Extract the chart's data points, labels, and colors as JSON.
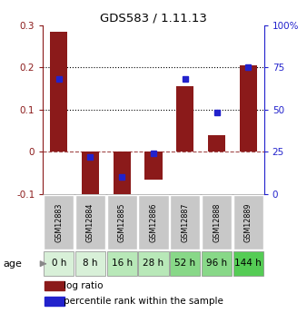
{
  "title": "GDS583 / 1.11.13",
  "samples": [
    "GSM12883",
    "GSM12884",
    "GSM12885",
    "GSM12886",
    "GSM12887",
    "GSM12888",
    "GSM12889"
  ],
  "ages": [
    "0 h",
    "8 h",
    "16 h",
    "28 h",
    "52 h",
    "96 h",
    "144 h"
  ],
  "log_ratio": [
    0.285,
    -0.115,
    -0.115,
    -0.065,
    0.155,
    0.04,
    0.205
  ],
  "percentile_rank_pct": [
    68,
    22,
    10,
    24,
    68,
    48,
    75
  ],
  "ylim_left": [
    -0.1,
    0.3
  ],
  "ylim_right": [
    0,
    100
  ],
  "yticks_left": [
    -0.1,
    0.0,
    0.1,
    0.2,
    0.3
  ],
  "ytick_labels_left": [
    "-0.1",
    "0",
    "0.1",
    "0.2",
    "0.3"
  ],
  "yticks_right": [
    0,
    25,
    50,
    75,
    100
  ],
  "ytick_labels_right": [
    "0",
    "25",
    "50",
    "75",
    "100%"
  ],
  "bar_color": "#8B1A1A",
  "dot_color": "#2222CC",
  "dotted_line_y": [
    0.1,
    0.2
  ],
  "dashed_line_y": 0.0,
  "age_colors": [
    "#d8f0d8",
    "#d8f0d8",
    "#b8e8b8",
    "#b8e8b8",
    "#88d888",
    "#88d888",
    "#55cc55"
  ],
  "sample_bg": "#c8c8c8",
  "bar_width": 0.55,
  "dot_size": 5
}
